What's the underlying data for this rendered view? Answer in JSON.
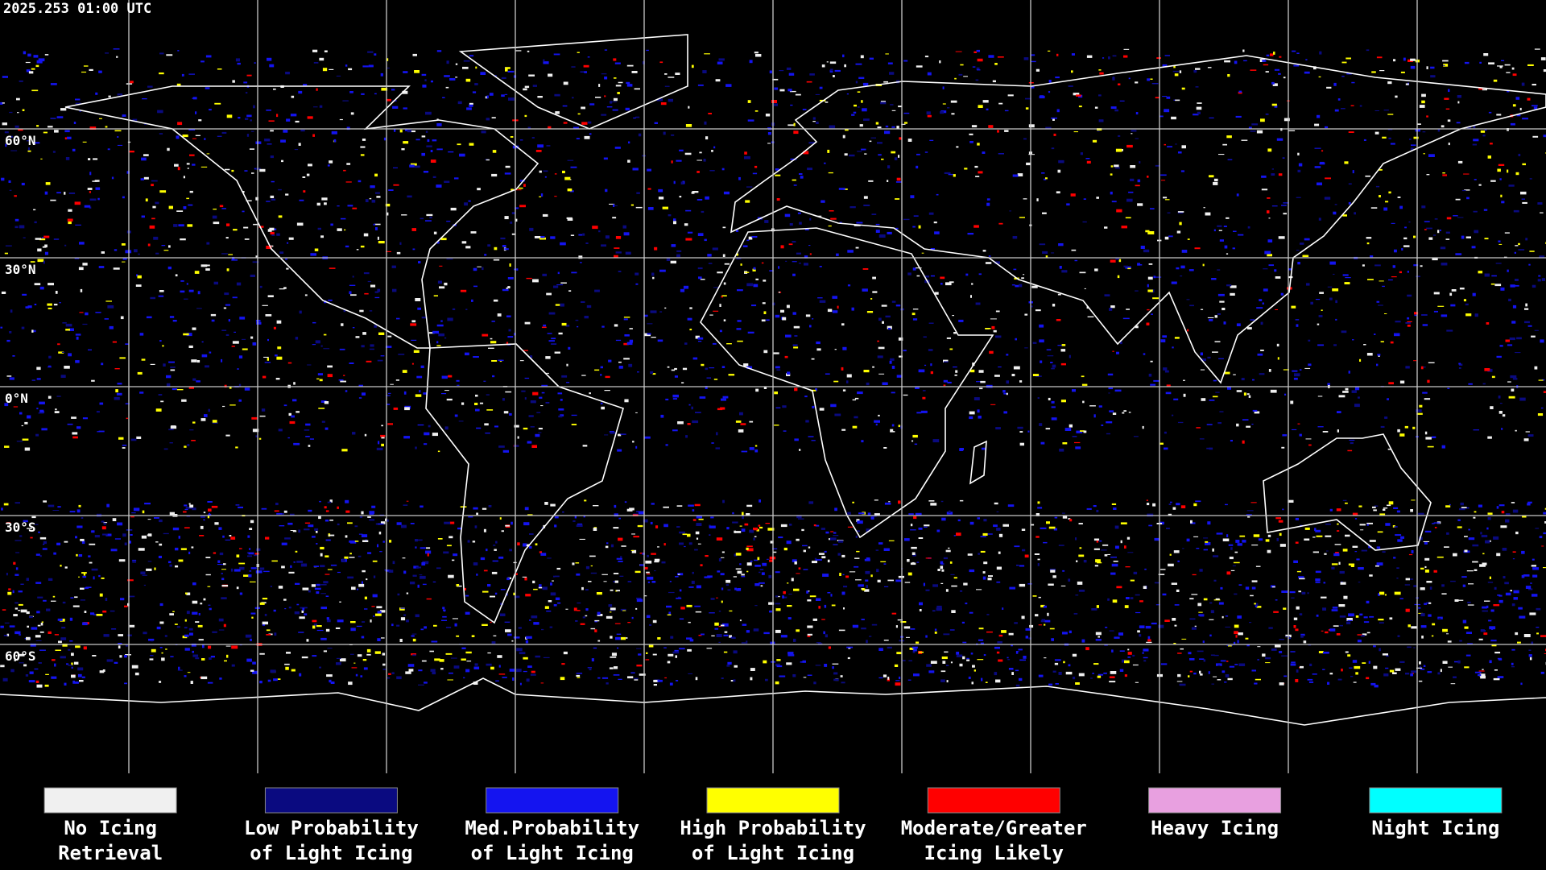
{
  "header": {
    "timestamp": "2025.253 01:00 UTC"
  },
  "map": {
    "lat_labels": [
      "60°N",
      "30°N",
      "0°N",
      "30°S",
      "60°S"
    ]
  },
  "legend": {
    "items": [
      {
        "lines": [
          "No Icing",
          "Retrieval"
        ],
        "color": "#f0f0f0"
      },
      {
        "lines": [
          "Low Probability",
          "of Light Icing"
        ],
        "color": "#0a0a80"
      },
      {
        "lines": [
          "Med.Probability",
          "of Light Icing"
        ],
        "color": "#1414f0"
      },
      {
        "lines": [
          "High Probability",
          "of Light Icing"
        ],
        "color": "#ffff00"
      },
      {
        "lines": [
          "Moderate/Greater",
          "Icing Likely"
        ],
        "color": "#ff0000"
      },
      {
        "lines": [
          "Heavy Icing"
        ],
        "color": "#e8a0e0"
      },
      {
        "lines": [
          "Night Icing"
        ],
        "color": "#00ffff"
      }
    ]
  }
}
